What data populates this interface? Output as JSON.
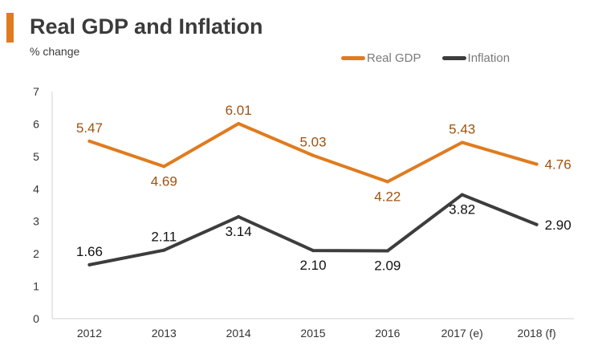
{
  "header": {
    "title": "Real GDP and Inflation",
    "subtitle": "% change"
  },
  "colors": {
    "accent": "#e07b1f",
    "real_gdp": "#e07b1f",
    "inflation": "#3d3d3d",
    "real_gdp_label": "#a0520f",
    "inflation_label": "#111111"
  },
  "chart_data": {
    "type": "line",
    "title": "Real GDP and Inflation",
    "ylabel": "% change",
    "xlabel": "",
    "categories": [
      "2012",
      "2013",
      "2014",
      "2015",
      "2016",
      "2017 (e)",
      "2018 (f)"
    ],
    "ylim": [
      0,
      7
    ],
    "yticks": [
      "0",
      "1",
      "2",
      "3",
      "4",
      "5",
      "6",
      "7"
    ],
    "grid": false,
    "legend": "top-right",
    "series": [
      {
        "name": "Real GDP",
        "values": [
          5.47,
          4.69,
          6.01,
          5.03,
          4.22,
          5.43,
          4.76
        ],
        "labels": [
          "5.47",
          "4.69",
          "6.01",
          "5.03",
          "4.22",
          "5.43",
          "4.76"
        ]
      },
      {
        "name": "Inflation",
        "values": [
          1.66,
          2.11,
          3.14,
          2.1,
          2.09,
          3.82,
          2.9
        ],
        "labels": [
          "1.66",
          "2.11",
          "3.14",
          "2.10",
          "2.09",
          "3.82",
          "2.90"
        ]
      }
    ]
  }
}
